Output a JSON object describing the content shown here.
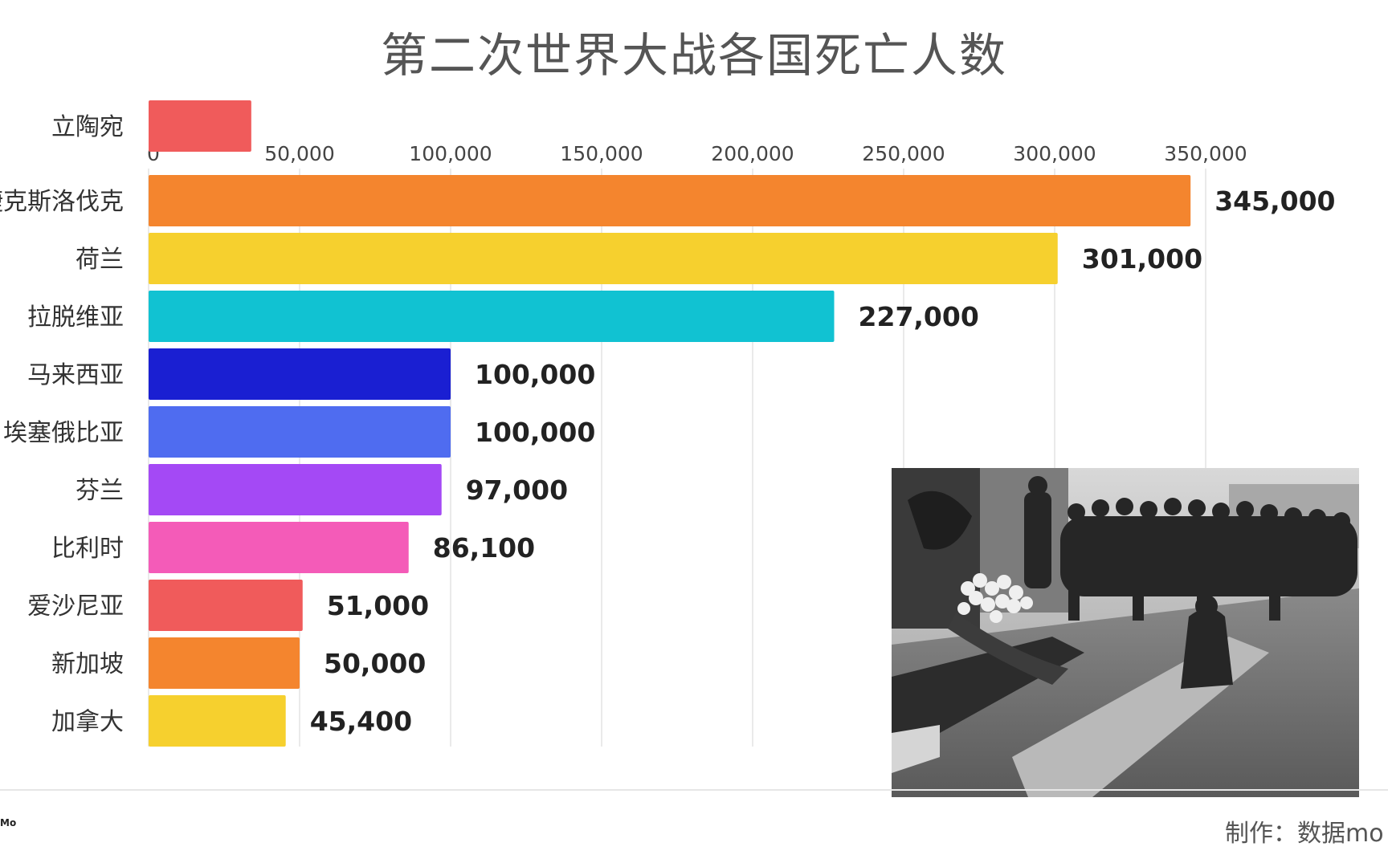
{
  "title": "第二次世界大战各国死亡人数",
  "credit": "制作：数据mo",
  "logo_text": "Mo",
  "chart_data": {
    "type": "bar",
    "orientation": "horizontal",
    "title": "第二次世界大战各国死亡人数",
    "xlim": [
      0,
      350000
    ],
    "ticks": [
      0,
      50000,
      100000,
      150000,
      200000,
      250000,
      300000,
      350000
    ],
    "tick_labels": [
      "0",
      "50,000",
      "100,000",
      "150,000",
      "200,000",
      "250,000",
      "300,000",
      "350,000"
    ],
    "grid": true,
    "categories": [
      "立陶宛",
      "捷克斯洛伐克",
      "荷兰",
      "拉脱维亚",
      "马来西亚",
      "埃塞俄比亚",
      "芬兰",
      "比利时",
      "爱沙尼亚",
      "新加坡",
      "加拿大"
    ],
    "values": [
      34000,
      345000,
      301000,
      227000,
      100000,
      100000,
      97000,
      86100,
      51000,
      50000,
      45400
    ],
    "value_labels": [
      "",
      "345,000",
      "301,000",
      "227,000",
      "100,000",
      "100,000",
      "97,000",
      "86,100",
      "51,000",
      "50,000",
      "45,400"
    ],
    "colors": [
      "#f05b5b",
      "#f4852e",
      "#f6d02e",
      "#11c2d2",
      "#1a1fd2",
      "#4f6cf0",
      "#a449f5",
      "#f45bb8",
      "#f05b5b",
      "#f4852e",
      "#f6d02e"
    ]
  }
}
